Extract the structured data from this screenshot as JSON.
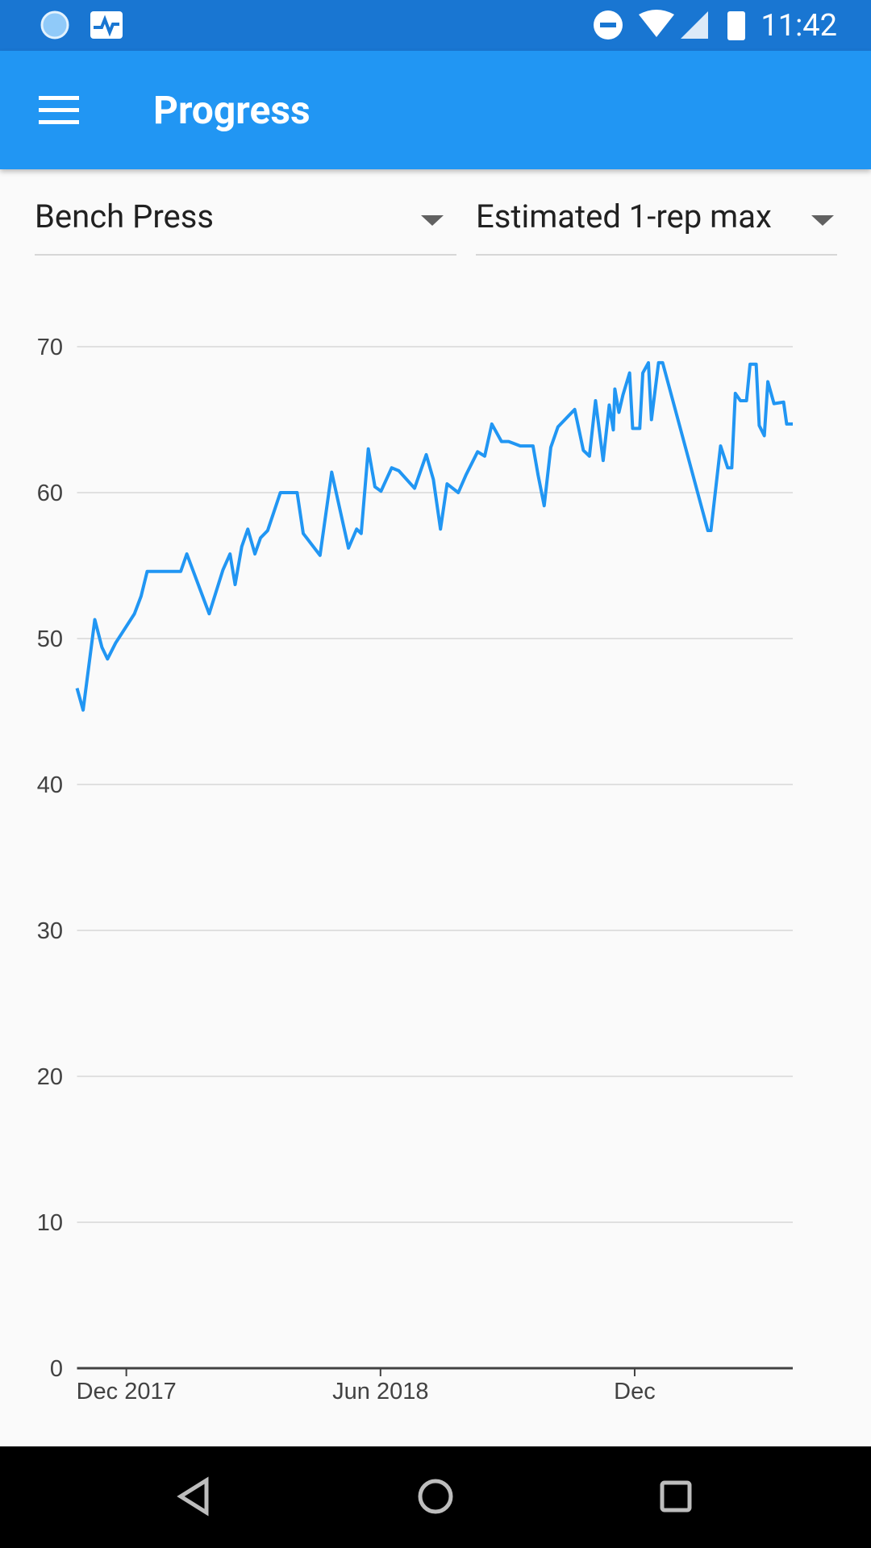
{
  "status_bar": {
    "time": "11:42"
  },
  "app_bar": {
    "title": "Progress"
  },
  "filters": {
    "exercise": "Bench Press",
    "metric": "Estimated 1-rep max"
  },
  "chart_data": {
    "type": "line",
    "x": [
      2017.82,
      2017.832,
      2017.855,
      2017.869,
      2017.88,
      2017.896,
      2017.933,
      2017.946,
      2017.958,
      2018.024,
      2018.036,
      2018.08,
      2018.107,
      2018.121,
      2018.131,
      2018.144,
      2018.156,
      2018.17,
      2018.181,
      2018.195,
      2018.22,
      2018.253,
      2018.265,
      2018.298,
      2018.321,
      2018.354,
      2018.37,
      2018.379,
      2018.393,
      2018.406,
      2018.418,
      2018.439,
      2018.453,
      2018.484,
      2018.507,
      2018.521,
      2018.535,
      2018.548,
      2018.57,
      2018.585,
      2018.608,
      2018.622,
      2018.636,
      2018.655,
      2018.669,
      2018.692,
      2018.717,
      2018.727,
      2018.739,
      2018.752,
      2018.766,
      2018.799,
      2018.816,
      2018.828,
      2018.84,
      2018.855,
      2018.867,
      2018.875,
      2018.878,
      2018.886,
      2018.894,
      2018.907,
      2018.913,
      2018.927,
      2018.933,
      2018.944,
      2018.95,
      2018.964,
      2018.972,
      2019.061,
      2019.067,
      2019.086,
      2019.1,
      2019.108,
      2019.115,
      2019.125,
      2019.137,
      2019.144,
      2019.156,
      2019.162,
      2019.172,
      2019.179,
      2019.191,
      2019.21,
      2019.216,
      2019.228
    ],
    "series": [
      {
        "color": "#2196f3",
        "values": [
          46.6,
          45.1,
          51.3,
          49.4,
          48.6,
          49.7,
          51.7,
          52.9,
          54.6,
          54.6,
          55.8,
          51.7,
          54.7,
          55.8,
          53.7,
          56.3,
          57.5,
          55.8,
          56.9,
          57.4,
          60.0,
          60.0,
          57.2,
          55.7,
          61.4,
          56.2,
          57.5,
          57.2,
          63.0,
          60.4,
          60.1,
          61.7,
          61.5,
          60.3,
          62.6,
          60.9,
          57.5,
          60.6,
          60.0,
          61.2,
          62.8,
          62.5,
          64.7,
          63.5,
          63.5,
          63.2,
          63.2,
          61.2,
          59.1,
          63.1,
          64.5,
          65.7,
          62.9,
          62.5,
          66.3,
          62.2,
          66.0,
          64.3,
          67.1,
          65.5,
          66.7,
          68.2,
          64.4,
          64.4,
          68.2,
          68.9,
          65.0,
          68.9,
          68.9,
          57.4,
          57.4,
          63.2,
          61.7,
          61.7,
          66.8,
          66.3,
          66.3,
          68.8,
          68.8,
          64.6,
          63.9,
          67.6,
          66.1,
          66.2,
          64.7,
          64.7
        ]
      }
    ],
    "xlim": [
      2017.82,
      2019.228
    ],
    "xticks": [
      {
        "value": 2017.917,
        "label": "Dec 2017"
      },
      {
        "value": 2018.417,
        "label": "Jun 2018"
      },
      {
        "value": 2018.917,
        "label": "Dec"
      }
    ],
    "ylim": [
      0,
      70
    ],
    "yticks": [
      0,
      10,
      20,
      30,
      40,
      50,
      60,
      70
    ],
    "grid": true
  }
}
